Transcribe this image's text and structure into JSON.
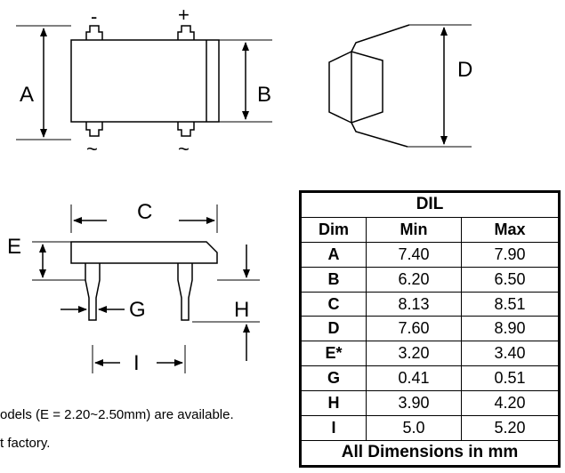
{
  "drawing": {
    "top_view": {
      "label_a": "A",
      "label_b": "B",
      "pin_minus": "-",
      "pin_plus": "+",
      "pin_ac_left": "~",
      "pin_ac_right": "~"
    },
    "side_view": {
      "label_d": "D"
    },
    "front_view": {
      "label_c": "C",
      "label_e": "E",
      "label_g": "G",
      "label_h": "H",
      "label_i": "I"
    }
  },
  "notes": [
    "odels (E = 2.20~2.50mm) are available.",
    "t factory."
  ],
  "table": {
    "title": "DIL",
    "headers": [
      "Dim",
      "Min",
      "Max"
    ],
    "rows": [
      {
        "dim": "A",
        "min": "7.40",
        "max": "7.90"
      },
      {
        "dim": "B",
        "min": "6.20",
        "max": "6.50"
      },
      {
        "dim": "C",
        "min": "8.13",
        "max": "8.51"
      },
      {
        "dim": "D",
        "min": "7.60",
        "max": "8.90"
      },
      {
        "dim": "E*",
        "min": "3.20",
        "max": "3.40"
      },
      {
        "dim": "G",
        "min": "0.41",
        "max": "0.51"
      },
      {
        "dim": "H",
        "min": "3.90",
        "max": "4.20"
      },
      {
        "dim": "I",
        "min": "5.0",
        "max": "5.20"
      }
    ],
    "footer": "All Dimensions in mm"
  }
}
